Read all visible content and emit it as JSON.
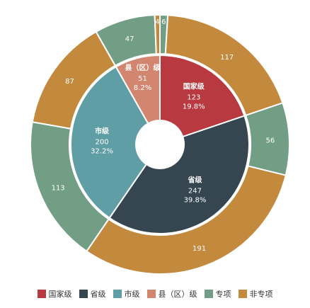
{
  "chart_data": {
    "type": "pie",
    "inner": {
      "slices": [
        {
          "name": "国家级",
          "value": 123,
          "percent": "19.8%",
          "color": "#b8393f"
        },
        {
          "name": "省级",
          "value": 247,
          "percent": "39.8%",
          "color": "#354651"
        },
        {
          "name": "市级",
          "value": 200,
          "percent": "32.2%",
          "color": "#5f9ea5"
        },
        {
          "name": "县（区）级",
          "value": 51,
          "percent": "8.2%",
          "color": "#d28670"
        }
      ]
    },
    "outer": {
      "slices": [
        {
          "category": "国家级",
          "series": "专项",
          "value": 6,
          "color": "#739e86"
        },
        {
          "category": "国家级",
          "series": "非专项",
          "value": 117,
          "color": "#c38a3e"
        },
        {
          "category": "省级",
          "series": "专项",
          "value": 56,
          "color": "#739e86"
        },
        {
          "category": "省级",
          "series": "非专项",
          "value": 191,
          "color": "#c38a3e"
        },
        {
          "category": "市级",
          "series": "专项",
          "value": 113,
          "color": "#739e86"
        },
        {
          "category": "市级",
          "series": "非专项",
          "value": 87,
          "color": "#c38a3e"
        },
        {
          "category": "县（区）级",
          "series": "专项",
          "value": 47,
          "color": "#739e86"
        },
        {
          "category": "县（区）级",
          "series": "非专项",
          "value": 4,
          "color": "#c38a3e"
        }
      ]
    },
    "legend_position": "bottom"
  },
  "legend": [
    {
      "label": "国家级",
      "color": "#b8393f"
    },
    {
      "label": "省级",
      "color": "#354651"
    },
    {
      "label": "市级",
      "color": "#5f9ea5"
    },
    {
      "label": "县（区）级",
      "color": "#d28670"
    },
    {
      "label": "专项",
      "color": "#739e86"
    },
    {
      "label": "非专项",
      "color": "#c38a3e"
    }
  ]
}
